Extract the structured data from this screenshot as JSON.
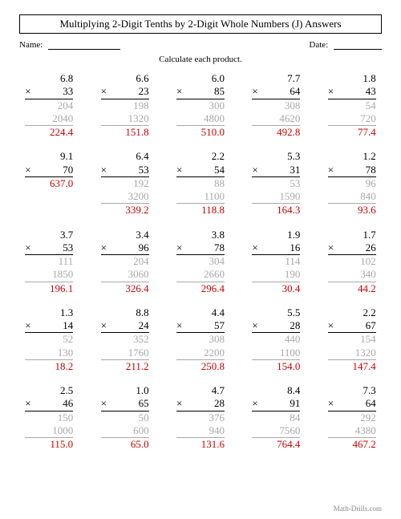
{
  "title": "Multiplying 2-Digit Tenths by 2-Digit Whole Numbers (J) Answers",
  "name_label": "Name:",
  "date_label": "Date:",
  "instruction": "Calculate each product.",
  "footer": "Math-Drills.com",
  "colors": {
    "partial": "#a9a9a9",
    "answer": "#cc0000",
    "text": "#000000",
    "bg": "#ffffff"
  },
  "problems": [
    {
      "a": "6.8",
      "b": "33",
      "pp": [
        "204",
        "2040"
      ],
      "ans": "224.4"
    },
    {
      "a": "6.6",
      "b": "23",
      "pp": [
        "198",
        "1320"
      ],
      "ans": "151.8"
    },
    {
      "a": "6.0",
      "b": "85",
      "pp": [
        "300",
        "4800"
      ],
      "ans": "510.0"
    },
    {
      "a": "7.7",
      "b": "64",
      "pp": [
        "308",
        "4620"
      ],
      "ans": "492.8"
    },
    {
      "a": "1.8",
      "b": "43",
      "pp": [
        "54",
        "720"
      ],
      "ans": "77.4"
    },
    {
      "a": "9.1",
      "b": "70",
      "pp": [],
      "ans": "637.0"
    },
    {
      "a": "6.4",
      "b": "53",
      "pp": [
        "192",
        "3200"
      ],
      "ans": "339.2"
    },
    {
      "a": "2.2",
      "b": "54",
      "pp": [
        "88",
        "1100"
      ],
      "ans": "118.8"
    },
    {
      "a": "5.3",
      "b": "31",
      "pp": [
        "53",
        "1590"
      ],
      "ans": "164.3"
    },
    {
      "a": "1.2",
      "b": "78",
      "pp": [
        "96",
        "840"
      ],
      "ans": "93.6"
    },
    {
      "a": "3.7",
      "b": "53",
      "pp": [
        "111",
        "1850"
      ],
      "ans": "196.1"
    },
    {
      "a": "3.4",
      "b": "96",
      "pp": [
        "204",
        "3060"
      ],
      "ans": "326.4"
    },
    {
      "a": "3.8",
      "b": "78",
      "pp": [
        "304",
        "2660"
      ],
      "ans": "296.4"
    },
    {
      "a": "1.9",
      "b": "16",
      "pp": [
        "114",
        "190"
      ],
      "ans": "30.4"
    },
    {
      "a": "1.7",
      "b": "26",
      "pp": [
        "102",
        "340"
      ],
      "ans": "44.2"
    },
    {
      "a": "1.3",
      "b": "14",
      "pp": [
        "52",
        "130"
      ],
      "ans": "18.2"
    },
    {
      "a": "8.8",
      "b": "24",
      "pp": [
        "352",
        "1760"
      ],
      "ans": "211.2"
    },
    {
      "a": "4.4",
      "b": "57",
      "pp": [
        "308",
        "2200"
      ],
      "ans": "250.8"
    },
    {
      "a": "5.5",
      "b": "28",
      "pp": [
        "440",
        "1100"
      ],
      "ans": "154.0"
    },
    {
      "a": "2.2",
      "b": "67",
      "pp": [
        "154",
        "1320"
      ],
      "ans": "147.4"
    },
    {
      "a": "2.5",
      "b": "46",
      "pp": [
        "150",
        "1000"
      ],
      "ans": "115.0"
    },
    {
      "a": "1.0",
      "b": "65",
      "pp": [
        "50",
        "600"
      ],
      "ans": "65.0"
    },
    {
      "a": "4.7",
      "b": "28",
      "pp": [
        "376",
        "940"
      ],
      "ans": "131.6"
    },
    {
      "a": "8.4",
      "b": "91",
      "pp": [
        "84",
        "7560"
      ],
      "ans": "764.4"
    },
    {
      "a": "7.3",
      "b": "64",
      "pp": [
        "292",
        "4380"
      ],
      "ans": "467.2"
    }
  ]
}
